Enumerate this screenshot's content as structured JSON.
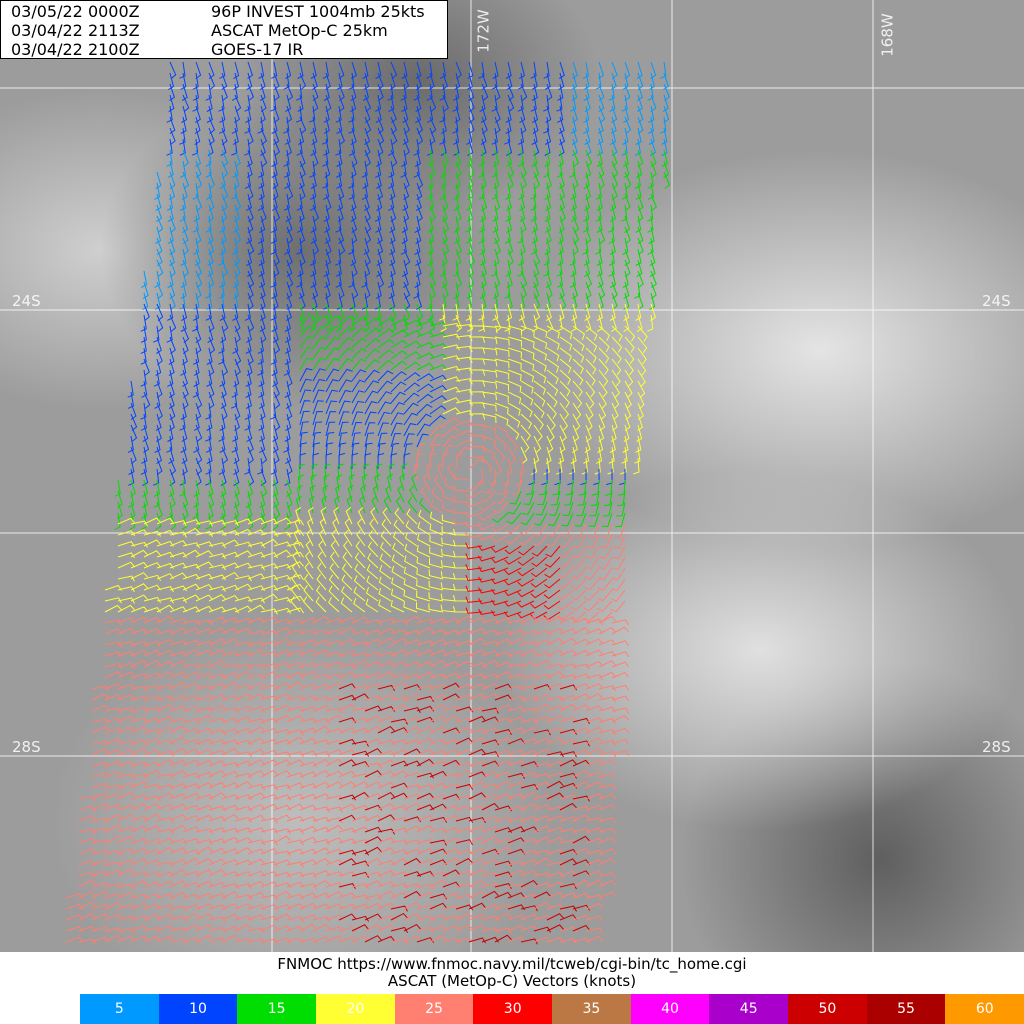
{
  "header": {
    "lines": [
      {
        "datetime": "03/05/22 0000Z",
        "text": "96P INVEST 1004mb 25kts"
      },
      {
        "datetime": "03/04/22 2113Z",
        "text": "ASCAT MetOp-C 25km"
      },
      {
        "datetime": "03/04/22 2100Z",
        "text": "GOES-17 IR"
      }
    ]
  },
  "grid": {
    "lat_labels": [
      "24S",
      "28S"
    ],
    "lon_labels": [
      "172W",
      "168W"
    ]
  },
  "footer": {
    "source": "FNMOC https://www.fnmoc.navy.mil/tcweb/cgi-bin/tc_home.cgi",
    "caption": "ASCAT (MetOp-C) Vectors (knots)"
  },
  "legend": [
    {
      "label": "5",
      "color": "#0099ff"
    },
    {
      "label": "10",
      "color": "#0044ff"
    },
    {
      "label": "15",
      "color": "#00dd00"
    },
    {
      "label": "20",
      "color": "#ffff33"
    },
    {
      "label": "25",
      "color": "#ff7f70"
    },
    {
      "label": "30",
      "color": "#ff0000"
    },
    {
      "label": "35",
      "color": "#bb7744"
    },
    {
      "label": "40",
      "color": "#ff00ff"
    },
    {
      "label": "45",
      "color": "#aa00cc"
    },
    {
      "label": "50",
      "color": "#cc0000"
    },
    {
      "label": "55",
      "color": "#aa0000"
    },
    {
      "label": "60",
      "color": "#ff9900"
    }
  ]
}
